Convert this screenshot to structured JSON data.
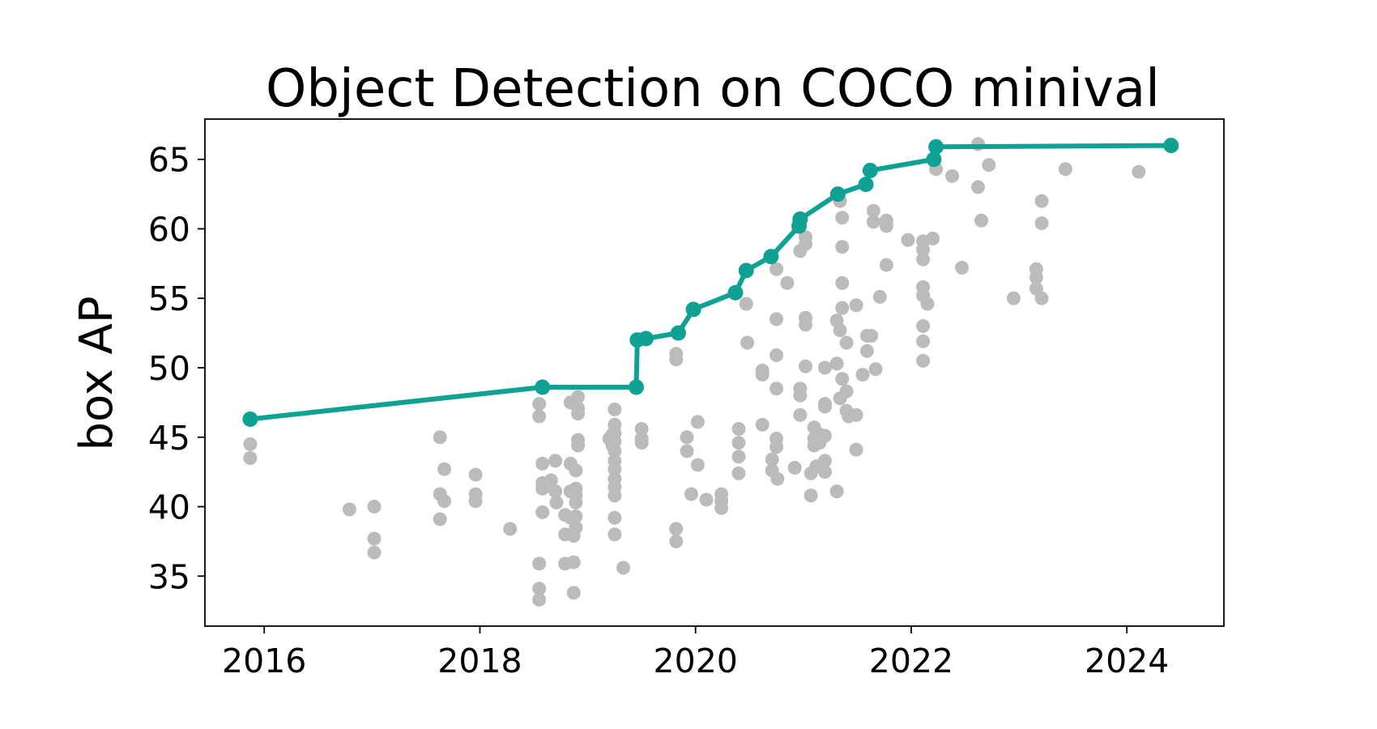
{
  "chart_data": {
    "type": "scatter",
    "title": "Object Detection on COCO minival",
    "xlabel": "",
    "ylabel": "box AP",
    "xlim": [
      2015.45,
      2024.9
    ],
    "ylim": [
      31.4,
      67.9
    ],
    "x_ticks": [
      2016,
      2018,
      2020,
      2022,
      2024
    ],
    "y_ticks": [
      35,
      40,
      45,
      50,
      55,
      60,
      65
    ],
    "grid": false,
    "colors": {
      "scatter": "#bbbbbb",
      "frontier": "#0fa294"
    },
    "series": [
      {
        "type": "scatter",
        "points": [
          [
            2015.87,
            44.5
          ],
          [
            2015.87,
            43.5
          ],
          [
            2016.79,
            39.8
          ],
          [
            2017.02,
            40.0
          ],
          [
            2017.02,
            37.7
          ],
          [
            2017.02,
            36.7
          ],
          [
            2017.63,
            45.0
          ],
          [
            2017.63,
            40.9
          ],
          [
            2017.63,
            39.1
          ],
          [
            2017.67,
            42.7
          ],
          [
            2017.67,
            40.4
          ],
          [
            2017.96,
            42.3
          ],
          [
            2017.96,
            40.9
          ],
          [
            2017.96,
            40.4
          ],
          [
            2018.28,
            38.4
          ],
          [
            2018.55,
            47.4
          ],
          [
            2018.55,
            46.5
          ],
          [
            2018.55,
            35.9
          ],
          [
            2018.55,
            34.1
          ],
          [
            2018.55,
            33.3
          ],
          [
            2018.58,
            43.1
          ],
          [
            2018.58,
            41.7
          ],
          [
            2018.58,
            41.3
          ],
          [
            2018.58,
            39.6
          ],
          [
            2018.66,
            41.9
          ],
          [
            2018.7,
            43.3
          ],
          [
            2018.7,
            41.1
          ],
          [
            2018.71,
            40.3
          ],
          [
            2018.79,
            39.4
          ],
          [
            2018.79,
            38.0
          ],
          [
            2018.79,
            35.9
          ],
          [
            2018.84,
            47.5
          ],
          [
            2018.84,
            43.1
          ],
          [
            2018.84,
            41.1
          ],
          [
            2018.84,
            39.2
          ],
          [
            2018.87,
            37.9
          ],
          [
            2018.87,
            36.0
          ],
          [
            2018.87,
            33.8
          ],
          [
            2018.89,
            42.6
          ],
          [
            2018.89,
            41.3
          ],
          [
            2018.89,
            40.8
          ],
          [
            2018.89,
            40.3
          ],
          [
            2018.89,
            39.3
          ],
          [
            2018.89,
            38.5
          ],
          [
            2018.91,
            47.9
          ],
          [
            2018.91,
            47.1
          ],
          [
            2018.91,
            46.7
          ],
          [
            2018.91,
            44.8
          ],
          [
            2018.91,
            44.4
          ],
          [
            2019.2,
            44.9
          ],
          [
            2019.23,
            45.2
          ],
          [
            2019.23,
            44.4
          ],
          [
            2019.25,
            47.0
          ],
          [
            2019.25,
            45.9
          ],
          [
            2019.25,
            45.3
          ],
          [
            2019.25,
            44.7
          ],
          [
            2019.25,
            44.0
          ],
          [
            2019.25,
            43.3
          ],
          [
            2019.25,
            42.7
          ],
          [
            2019.25,
            42.0
          ],
          [
            2019.25,
            41.4
          ],
          [
            2019.25,
            40.8
          ],
          [
            2019.25,
            39.2
          ],
          [
            2019.25,
            38.0
          ],
          [
            2019.33,
            35.6
          ],
          [
            2019.5,
            45.6
          ],
          [
            2019.5,
            44.9
          ],
          [
            2019.5,
            44.6
          ],
          [
            2019.82,
            51.0
          ],
          [
            2019.82,
            50.6
          ],
          [
            2019.82,
            38.4
          ],
          [
            2019.82,
            37.5
          ],
          [
            2019.92,
            45.0
          ],
          [
            2019.92,
            44.0
          ],
          [
            2019.96,
            40.9
          ],
          [
            2020.02,
            46.1
          ],
          [
            2020.02,
            43.0
          ],
          [
            2020.1,
            40.5
          ],
          [
            2020.24,
            40.9
          ],
          [
            2020.24,
            40.4
          ],
          [
            2020.24,
            39.9
          ],
          [
            2020.4,
            45.6
          ],
          [
            2020.4,
            44.6
          ],
          [
            2020.4,
            43.6
          ],
          [
            2020.4,
            42.4
          ],
          [
            2020.47,
            54.6
          ],
          [
            2020.48,
            51.8
          ],
          [
            2020.62,
            49.8
          ],
          [
            2020.62,
            49.5
          ],
          [
            2020.62,
            45.9
          ],
          [
            2020.71,
            43.4
          ],
          [
            2020.71,
            42.6
          ],
          [
            2020.75,
            57.1
          ],
          [
            2020.75,
            53.5
          ],
          [
            2020.75,
            50.9
          ],
          [
            2020.75,
            48.5
          ],
          [
            2020.75,
            44.9
          ],
          [
            2020.75,
            44.3
          ],
          [
            2020.76,
            42.0
          ],
          [
            2020.85,
            56.1
          ],
          [
            2020.92,
            42.8
          ],
          [
            2020.97,
            58.4
          ],
          [
            2020.97,
            48.5
          ],
          [
            2020.97,
            48.0
          ],
          [
            2020.97,
            46.6
          ],
          [
            2021.02,
            59.4
          ],
          [
            2021.02,
            58.9
          ],
          [
            2021.02,
            53.6
          ],
          [
            2021.02,
            53.1
          ],
          [
            2021.02,
            50.1
          ],
          [
            2021.07,
            40.8
          ],
          [
            2021.07,
            42.4
          ],
          [
            2021.1,
            45.7
          ],
          [
            2021.1,
            44.9
          ],
          [
            2021.1,
            44.4
          ],
          [
            2021.12,
            42.9
          ],
          [
            2021.15,
            45.2
          ],
          [
            2021.15,
            44.6
          ],
          [
            2021.2,
            50.0
          ],
          [
            2021.2,
            47.4
          ],
          [
            2021.2,
            47.2
          ],
          [
            2021.2,
            45.1
          ],
          [
            2021.2,
            43.3
          ],
          [
            2021.2,
            42.5
          ],
          [
            2021.31,
            53.4
          ],
          [
            2021.31,
            50.3
          ],
          [
            2021.31,
            41.1
          ],
          [
            2021.34,
            62.0
          ],
          [
            2021.34,
            52.7
          ],
          [
            2021.34,
            47.8
          ],
          [
            2021.36,
            60.8
          ],
          [
            2021.36,
            58.7
          ],
          [
            2021.36,
            56.1
          ],
          [
            2021.36,
            54.3
          ],
          [
            2021.36,
            49.2
          ],
          [
            2021.4,
            51.8
          ],
          [
            2021.4,
            48.3
          ],
          [
            2021.4,
            46.9
          ],
          [
            2021.42,
            46.5
          ],
          [
            2021.49,
            54.5
          ],
          [
            2021.49,
            46.6
          ],
          [
            2021.49,
            44.1
          ],
          [
            2021.55,
            49.5
          ],
          [
            2021.59,
            52.3
          ],
          [
            2021.59,
            51.2
          ],
          [
            2021.63,
            52.3
          ],
          [
            2021.65,
            61.3
          ],
          [
            2021.65,
            60.5
          ],
          [
            2021.67,
            49.9
          ],
          [
            2021.71,
            55.1
          ],
          [
            2021.77,
            60.6
          ],
          [
            2021.77,
            60.2
          ],
          [
            2021.77,
            57.4
          ],
          [
            2021.97,
            59.2
          ],
          [
            2022.11,
            59.1
          ],
          [
            2022.11,
            58.5
          ],
          [
            2022.11,
            57.8
          ],
          [
            2022.11,
            55.8
          ],
          [
            2022.11,
            55.2
          ],
          [
            2022.11,
            53.0
          ],
          [
            2022.11,
            51.9
          ],
          [
            2022.11,
            50.5
          ],
          [
            2022.15,
            54.6
          ],
          [
            2022.2,
            59.3
          ],
          [
            2022.23,
            64.3
          ],
          [
            2022.38,
            63.8
          ],
          [
            2022.47,
            57.2
          ],
          [
            2022.62,
            66.1
          ],
          [
            2022.62,
            63.0
          ],
          [
            2022.65,
            60.6
          ],
          [
            2022.72,
            64.6
          ],
          [
            2022.95,
            55.0
          ],
          [
            2023.16,
            57.1
          ],
          [
            2023.16,
            56.5
          ],
          [
            2023.16,
            55.7
          ],
          [
            2023.21,
            62.0
          ],
          [
            2023.21,
            60.4
          ],
          [
            2023.21,
            55.0
          ],
          [
            2023.43,
            64.3
          ],
          [
            2024.11,
            64.1
          ]
        ]
      },
      {
        "type": "line",
        "points": [
          [
            2015.87,
            46.3
          ],
          [
            2018.58,
            48.6
          ],
          [
            2019.45,
            48.6
          ],
          [
            2019.46,
            52.0
          ],
          [
            2019.54,
            52.1
          ],
          [
            2019.84,
            52.5
          ],
          [
            2019.98,
            54.2
          ],
          [
            2020.37,
            55.4
          ],
          [
            2020.47,
            57.0
          ],
          [
            2020.7,
            58.0
          ],
          [
            2020.96,
            60.2
          ],
          [
            2020.97,
            60.7
          ],
          [
            2021.32,
            62.5
          ],
          [
            2021.58,
            63.2
          ],
          [
            2021.62,
            64.2
          ],
          [
            2022.21,
            65.0
          ],
          [
            2022.23,
            65.9
          ],
          [
            2024.41,
            66.0
          ]
        ]
      }
    ]
  }
}
